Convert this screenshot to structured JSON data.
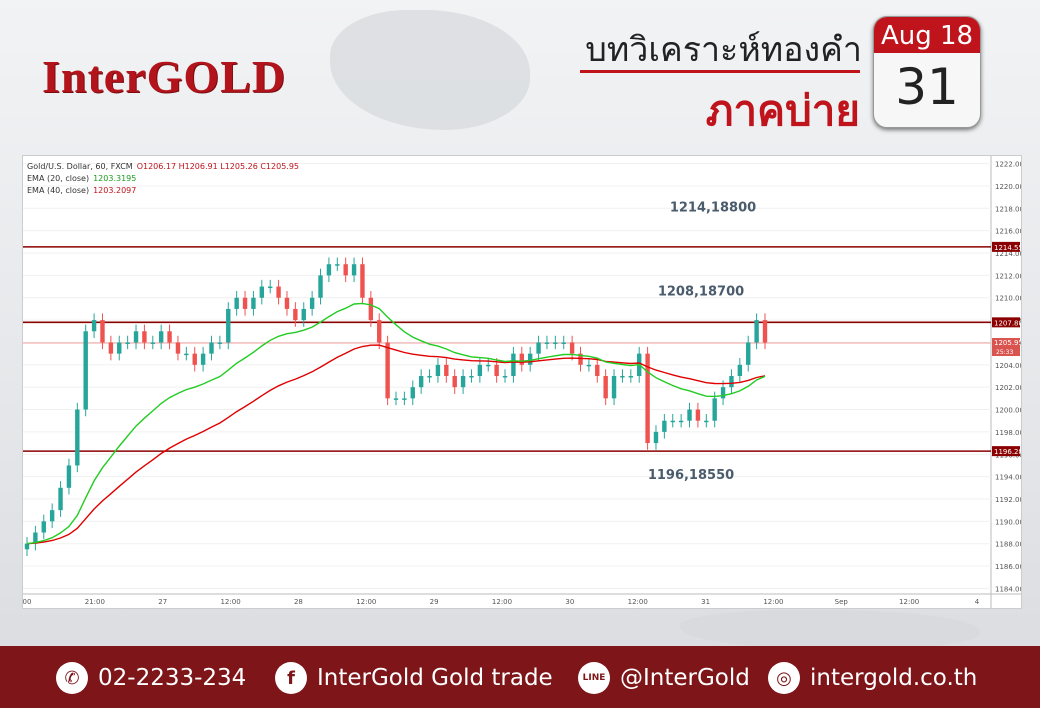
{
  "brand": {
    "logo": "InterGOLD",
    "color": "#b3141b"
  },
  "header": {
    "title_line1": "บทวิเคราะห์ทองคำ",
    "title_line2": "ภาคบ่าย"
  },
  "calendar": {
    "month": "Aug 18",
    "day": "31"
  },
  "chart_legend": {
    "symbol": "Gold/U.S. Dollar, 60, FXCM",
    "ohlc": "O1206.17  H1206.91  L1205.26  C1205.95",
    "ema20": "EMA (20, close)",
    "ema20_val": "1203.3195",
    "ema40": "EMA (40, close)",
    "ema40_val": "1203.2097"
  },
  "chart_data": {
    "type": "line",
    "ylim": [
      1183.5,
      1222.5
    ],
    "y_ticks": [
      1184,
      1186,
      1188,
      1190,
      1192,
      1194,
      1196,
      1198,
      1200,
      1202,
      1204,
      1206,
      1208,
      1210,
      1212,
      1214,
      1216,
      1218,
      1220,
      1222
    ],
    "x_tick_labels": [
      "00",
      "21:00",
      "27",
      "12:00",
      "28",
      "12:00",
      "29",
      "12:00",
      "30",
      "12:00",
      "31",
      "12:00",
      "Sep",
      "12:00",
      "4"
    ],
    "levels": [
      {
        "value": 1214.55,
        "label": "1214,18800",
        "tag": "1214.55"
      },
      {
        "value": 1207.8,
        "label": "1208,18700",
        "tag": "1207.80"
      },
      {
        "value": 1196.28,
        "label": "1196,18550",
        "tag": "1196.28"
      }
    ],
    "last_price": {
      "value": 1205.95,
      "tag": "1205.95",
      "countdown": "25:33"
    },
    "close_series": [
      1188,
      1189,
      1190,
      1191,
      1193,
      1195,
      1200,
      1207,
      1208,
      1206,
      1205,
      1206,
      1206,
      1207,
      1206,
      1206,
      1207,
      1206,
      1205,
      1205,
      1204,
      1205,
      1206,
      1206,
      1209,
      1210,
      1209,
      1210,
      1211,
      1211,
      1210,
      1209,
      1208,
      1209,
      1210,
      1212,
      1213,
      1213,
      1212,
      1213,
      1210,
      1208,
      1206,
      1201,
      1201,
      1201,
      1202,
      1203,
      1203,
      1204,
      1203,
      1202,
      1203,
      1203,
      1204,
      1204,
      1203,
      1203,
      1205,
      1204,
      1205,
      1206,
      1206,
      1206,
      1206,
      1205,
      1204,
      1204,
      1203,
      1201,
      1203,
      1203,
      1203,
      1205,
      1197,
      1198,
      1199,
      1199,
      1199,
      1200,
      1199,
      1199,
      1201,
      1202,
      1203,
      1204,
      1206,
      1208,
      1206
    ]
  },
  "footer": {
    "phone": "02-2233-234",
    "facebook": "InterGold Gold trade",
    "line": "@InterGold",
    "web": "intergold.co.th"
  }
}
